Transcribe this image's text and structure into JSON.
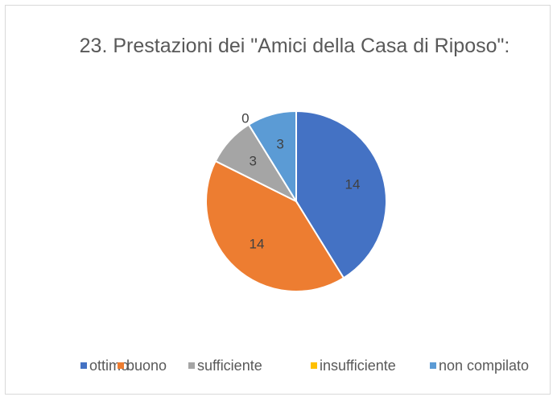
{
  "chart_data": {
    "type": "pie",
    "title": "23. Prestazioni dei \"Amici della Casa di Riposo\":",
    "categories": [
      "ottimo",
      "buono",
      "sufficiente",
      "insufficiente",
      "non compilato"
    ],
    "values": [
      14,
      14,
      3,
      0,
      3
    ],
    "colors": [
      "#4472c4",
      "#ed7d31",
      "#a5a5a5",
      "#ffc000",
      "#5b9bd5"
    ],
    "legend": "bottom"
  }
}
